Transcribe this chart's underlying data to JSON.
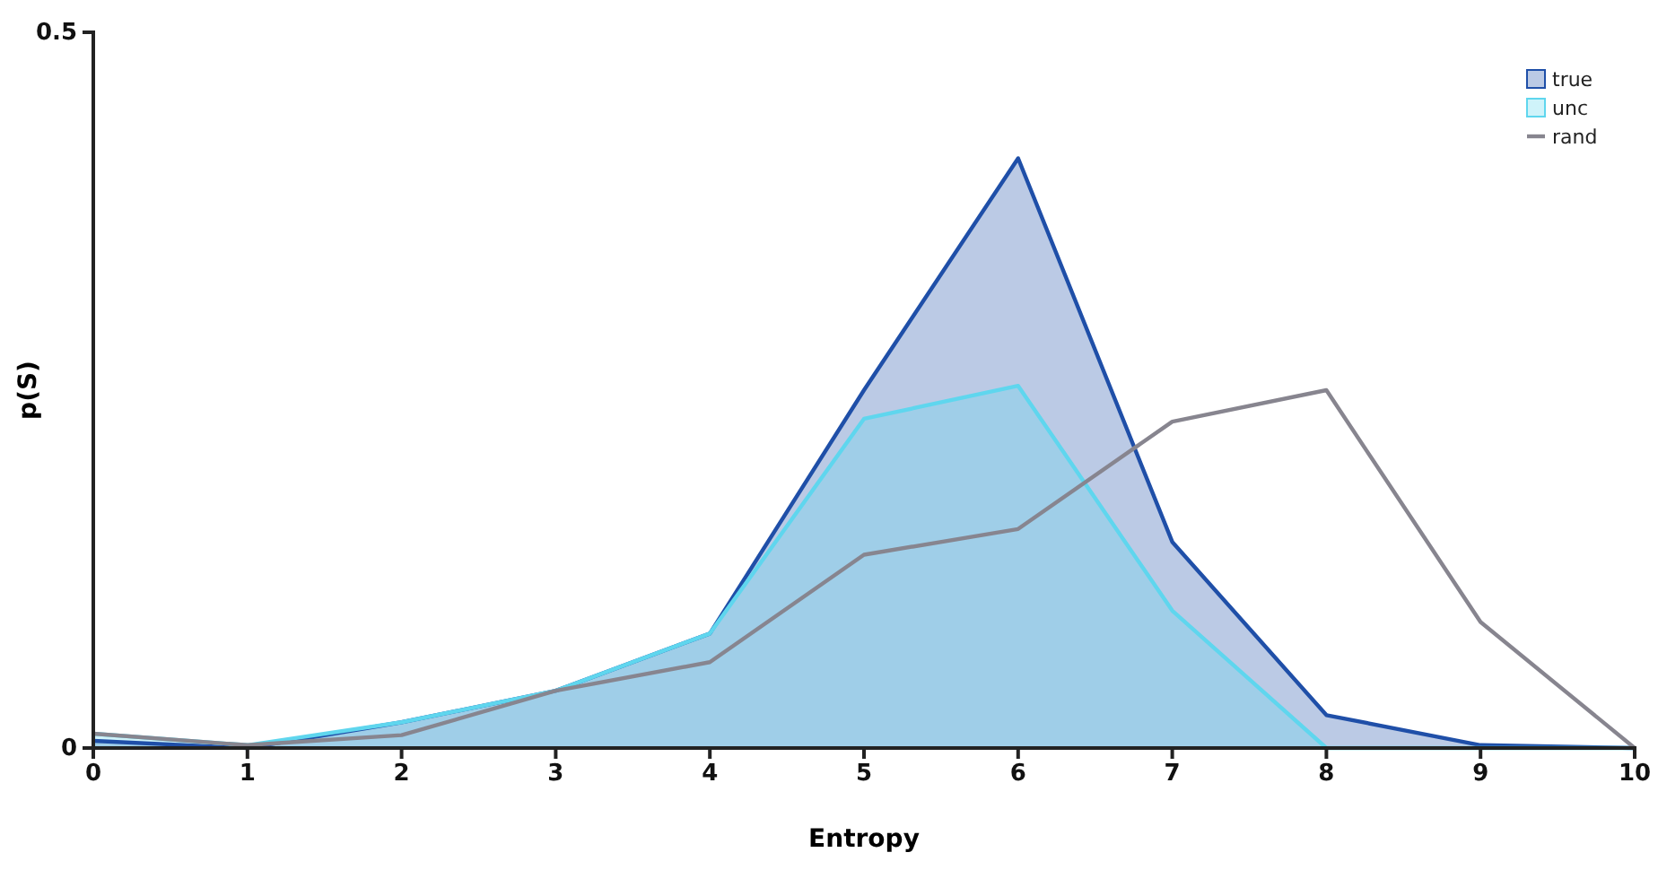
{
  "chart_data": {
    "type": "area",
    "xlabel": "Entropy",
    "ylabel": "p(S)",
    "x": [
      0,
      1,
      2,
      3,
      4,
      5,
      6,
      7,
      8,
      9,
      10
    ],
    "series": [
      {
        "name": "true",
        "color": "#1f4fa8",
        "values": [
          0.005,
          0,
          0.018,
          0.04,
          0.08,
          0.25,
          0.412,
          0.144,
          0.023,
          0.002,
          0
        ]
      },
      {
        "name": "unc",
        "color": "#5fd6ee",
        "values": [
          0.01,
          0.002,
          0.018,
          0.04,
          0.08,
          0.23,
          0.253,
          0.096,
          0,
          0,
          0
        ]
      },
      {
        "name": "rand",
        "type": "line",
        "color": "#87858f",
        "values": [
          0.01,
          0.002,
          0.009,
          0.04,
          0.06,
          0.135,
          0.153,
          0.228,
          0.25,
          0.088,
          0
        ]
      }
    ],
    "xlim": [
      0,
      10
    ],
    "xticks": [
      0,
      1,
      2,
      3,
      4,
      5,
      6,
      7,
      8,
      9,
      10
    ],
    "ylim": [
      0,
      0.5
    ],
    "yticks": [
      0,
      0.5
    ],
    "legend": "top right",
    "grid": false,
    "marker": "none"
  }
}
